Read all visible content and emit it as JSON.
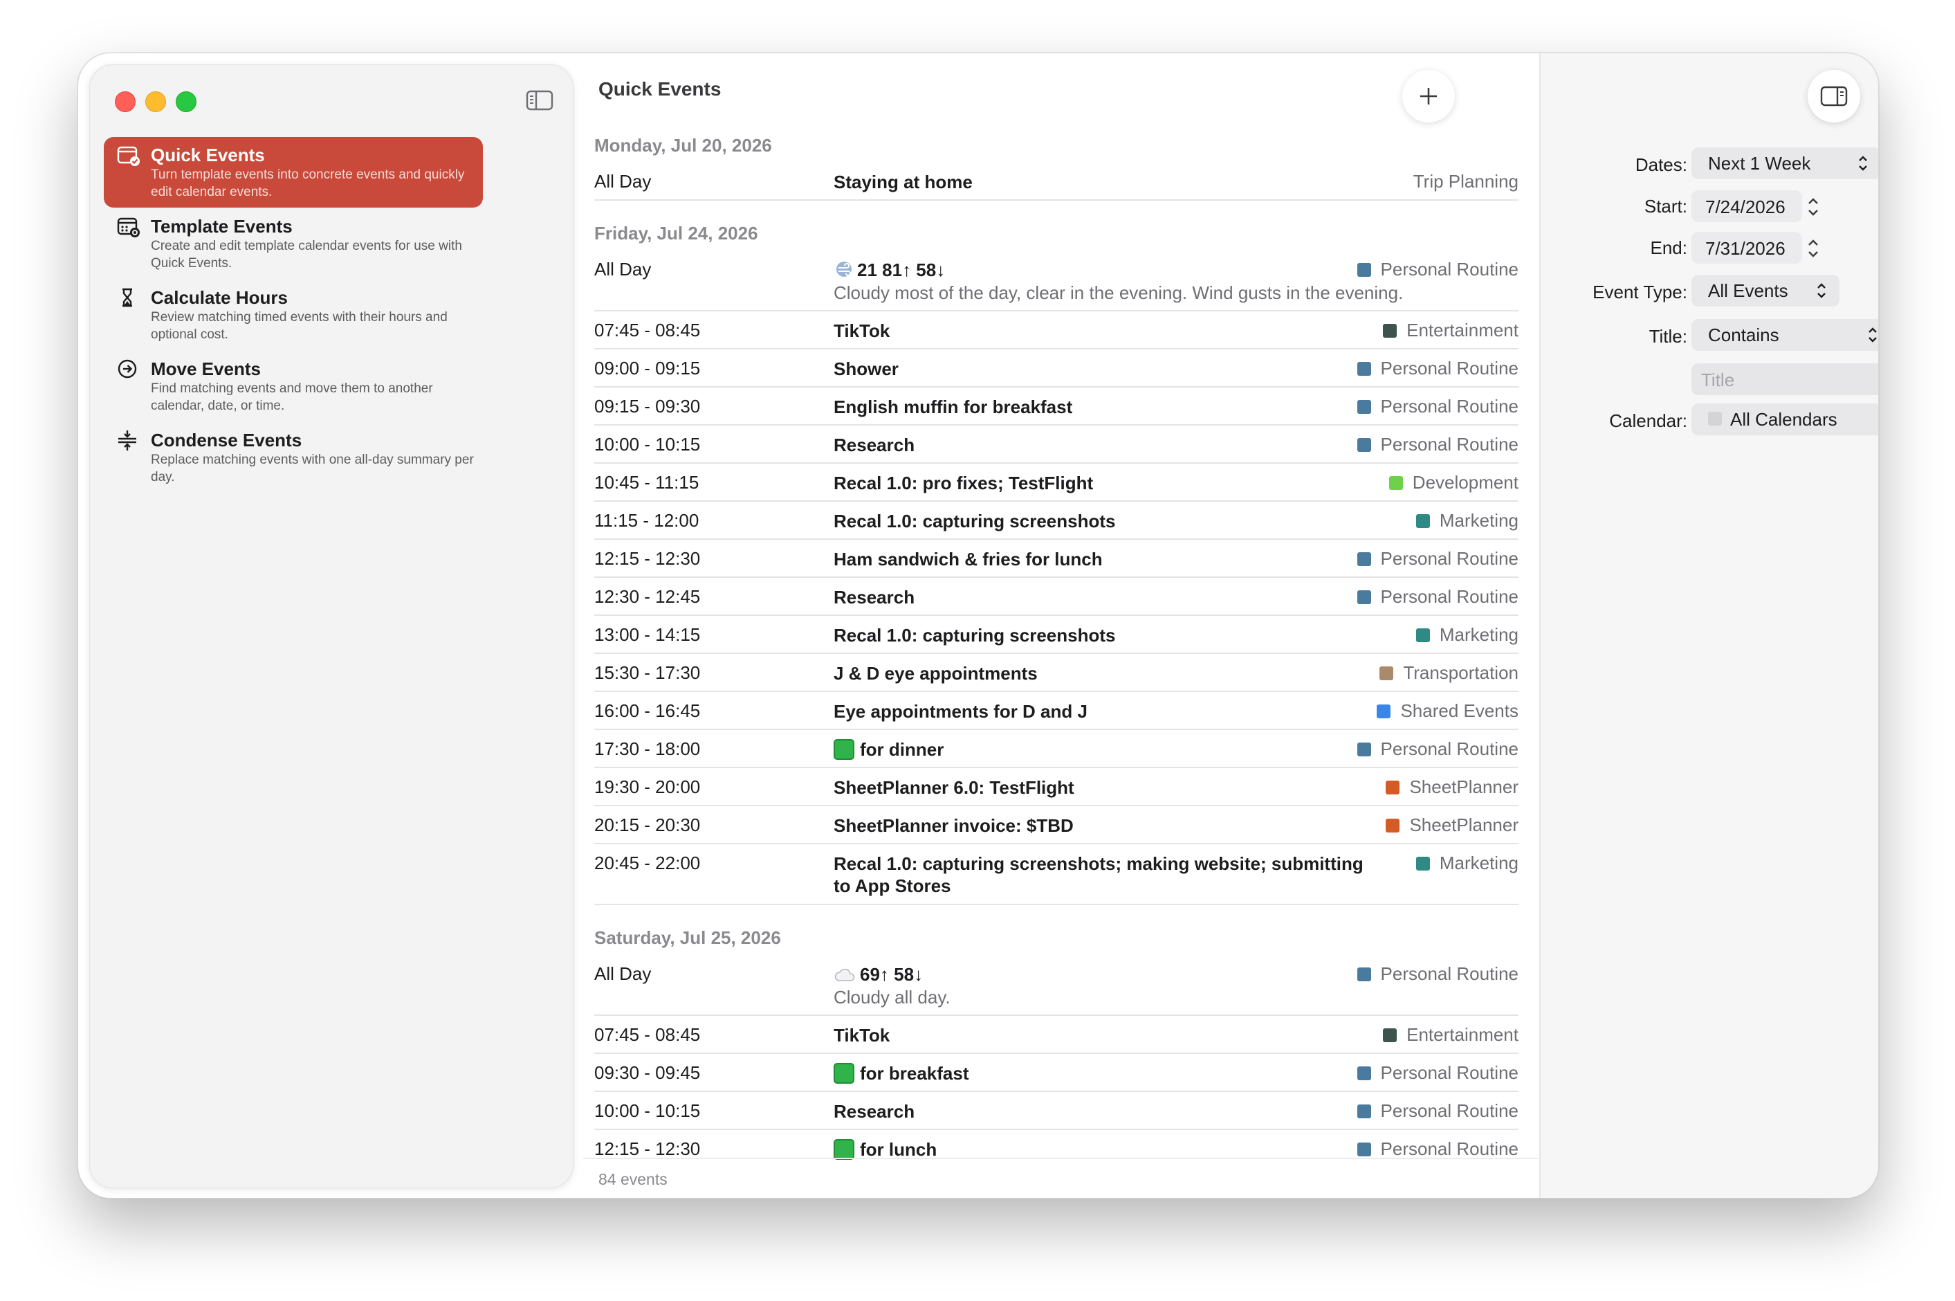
{
  "sidebar": {
    "items": [
      {
        "title": "Quick Events",
        "desc": "Turn template events into concrete events and quickly edit calendar events."
      },
      {
        "title": "Template Events",
        "desc": "Create and edit template calendar events for use with Quick Events."
      },
      {
        "title": "Calculate Hours",
        "desc": "Review matching timed events with their hours and optional cost."
      },
      {
        "title": "Move Events",
        "desc": "Find matching events and move them to another calendar, date, or time."
      },
      {
        "title": "Condense Events",
        "desc": "Replace matching events with one all-day summary per day."
      }
    ]
  },
  "main": {
    "title": "Quick Events",
    "footer": "84 events",
    "days": [
      {
        "header": "Monday, Jul 20, 2026",
        "events": [
          {
            "time": "All Day",
            "title": "Staying at home",
            "calendar": "Trip Planning",
            "color": ""
          }
        ]
      },
      {
        "header": "Friday, Jul 24, 2026",
        "events": [
          {
            "time": "All Day",
            "title": "21  81↑ 58↓",
            "subtitle": "Cloudy most of the day, clear in the evening. Wind gusts in the evening.",
            "calendar": "Personal Routine",
            "color": "#4a7a9e"
          },
          {
            "time": "07:45 - 08:45",
            "title": "TikTok",
            "calendar": "Entertainment",
            "color": "#3e524e"
          },
          {
            "time": "09:00 - 09:15",
            "title": "Shower",
            "calendar": "Personal Routine",
            "color": "#4a7a9e"
          },
          {
            "time": "09:15 - 09:30",
            "title": "English muffin for breakfast",
            "calendar": "Personal Routine",
            "color": "#4a7a9e"
          },
          {
            "time": "10:00 - 10:15",
            "title": "Research",
            "calendar": "Personal Routine",
            "color": "#4a7a9e"
          },
          {
            "time": "10:45 - 11:15",
            "title": "Recal 1.0: pro fixes; TestFlight",
            "calendar": "Development",
            "color": "#6fd04a"
          },
          {
            "time": "11:15 - 12:00",
            "title": "Recal 1.0: capturing screenshots",
            "calendar": "Marketing",
            "color": "#2f8a86"
          },
          {
            "time": "12:15 - 12:30",
            "title": "Ham sandwich & fries for lunch",
            "calendar": "Personal Routine",
            "color": "#4a7a9e"
          },
          {
            "time": "12:30 - 12:45",
            "title": "Research",
            "calendar": "Personal Routine",
            "color": "#4a7a9e"
          },
          {
            "time": "13:00 - 14:15",
            "title": "Recal 1.0: capturing screenshots",
            "calendar": "Marketing",
            "color": "#2f8a86"
          },
          {
            "time": "15:30 - 17:30",
            "title": "J & D eye appointments",
            "calendar": "Transportation",
            "color": "#a98a6a"
          },
          {
            "time": "16:00 - 16:45",
            "title": "Eye appointments for D and J",
            "calendar": "Shared Events",
            "color": "#3a86e8"
          },
          {
            "time": "17:30 - 18:00",
            "title": "for dinner",
            "calendar": "Personal Routine",
            "color": "#4a7a9e"
          },
          {
            "time": "19:30 - 20:00",
            "title": "SheetPlanner 6.0: TestFlight",
            "calendar": "SheetPlanner",
            "color": "#d45a26"
          },
          {
            "time": "20:15 - 20:30",
            "title": "SheetPlanner invoice: $TBD",
            "calendar": "SheetPlanner",
            "color": "#d45a26"
          },
          {
            "time": "20:45 - 22:00",
            "title": "Recal 1.0: capturing screenshots; making website; submitting to App Stores",
            "calendar": "Marketing",
            "color": "#2f8a86"
          }
        ]
      },
      {
        "header": "Saturday, Jul 25, 2026",
        "events": [
          {
            "time": "All Day",
            "title": "69↑ 58↓",
            "subtitle": "Cloudy all day.",
            "calendar": "Personal Routine",
            "color": "#4a7a9e"
          },
          {
            "time": "07:45 - 08:45",
            "title": "TikTok",
            "calendar": "Entertainment",
            "color": "#3e524e"
          },
          {
            "time": "09:30 - 09:45",
            "title": "for breakfast",
            "calendar": "Personal Routine",
            "color": "#4a7a9e"
          },
          {
            "time": "10:00 - 10:15",
            "title": "Research",
            "calendar": "Personal Routine",
            "color": "#4a7a9e"
          },
          {
            "time": "12:15 - 12:30",
            "title": "for lunch",
            "calendar": "Personal Routine",
            "color": "#4a7a9e"
          }
        ]
      }
    ]
  },
  "inspector": {
    "dates_label": "Dates:",
    "dates_value": "Next 1 Week",
    "start_label": "Start:",
    "start_value": "7/24/2026",
    "end_label": "End:",
    "end_value": "7/31/2026",
    "event_type_label": "Event Type:",
    "event_type_value": "All Events",
    "title_label": "Title:",
    "title_mode": "Contains",
    "title_placeholder": "Title",
    "calendar_label": "Calendar:",
    "calendar_value": "All Calendars"
  }
}
